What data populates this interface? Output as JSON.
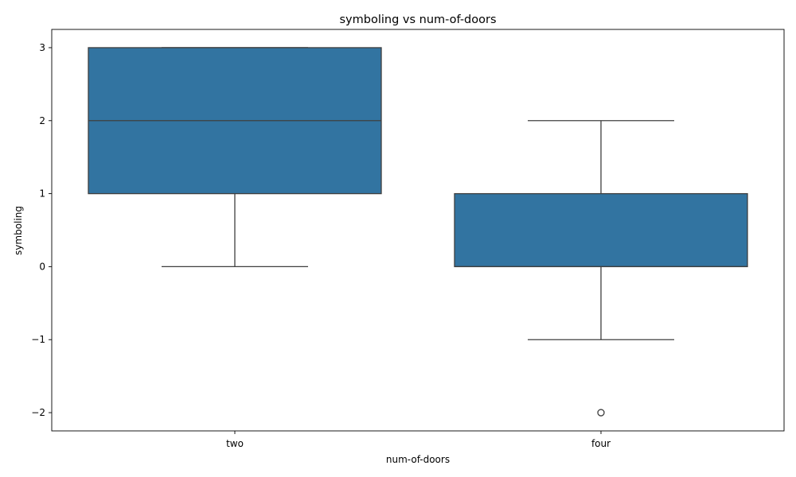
{
  "chart_data": {
    "type": "box",
    "title": "symboling vs num-of-doors",
    "xlabel": "num-of-doors",
    "ylabel": "symboling",
    "categories": [
      "two",
      "four"
    ],
    "boxes": [
      {
        "category": "two",
        "whisker_low": 0,
        "q1": 1,
        "median": 2,
        "q3": 3,
        "whisker_high": 3,
        "outliers": []
      },
      {
        "category": "four",
        "whisker_low": -1,
        "q1": 0,
        "median": 0,
        "q3": 1,
        "whisker_high": 2,
        "outliers": [
          -2
        ]
      }
    ],
    "ylim": [
      -2.25,
      3.25
    ],
    "yticks": [
      -2,
      -1,
      0,
      1,
      2,
      3
    ],
    "ytick_labels": [
      "−2",
      "−1",
      "0",
      "1",
      "2",
      "3"
    ],
    "grid": false,
    "box_color": "#3274a1",
    "line_color": "#3f3f3f"
  }
}
